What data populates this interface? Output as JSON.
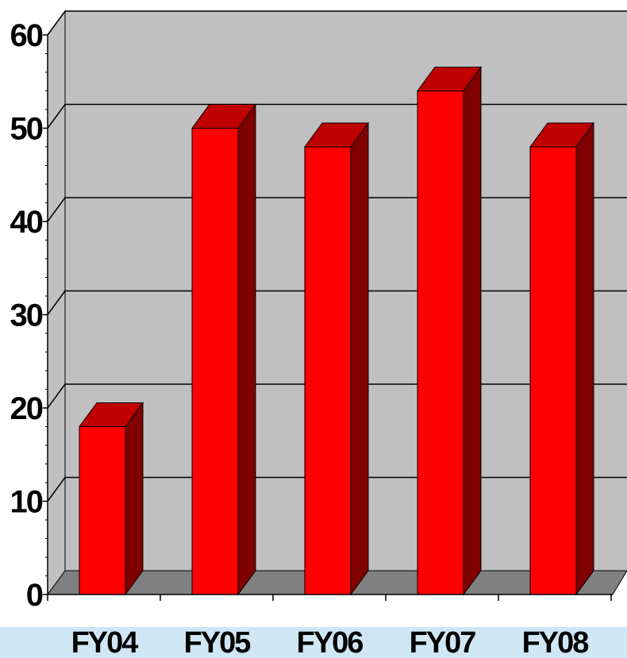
{
  "chart_data": {
    "type": "bar",
    "style": "3d",
    "title": "",
    "xlabel": "",
    "ylabel": "",
    "categories": [
      "FY04",
      "FY05",
      "FY06",
      "FY07",
      "FY08"
    ],
    "values": [
      18,
      50,
      48,
      54,
      48
    ],
    "ylim": [
      0,
      60
    ],
    "yticks": [
      0,
      10,
      20,
      30,
      40,
      50,
      60
    ],
    "grid": true,
    "legend": "none",
    "colors": {
      "bar_front": "#ff0000",
      "bar_top": "#c00000",
      "bar_side": "#800000",
      "back_wall": "#c0c0c0",
      "floor": "#808080",
      "gridline": "#000000",
      "bottom_strip": "#cfe6f5"
    }
  }
}
